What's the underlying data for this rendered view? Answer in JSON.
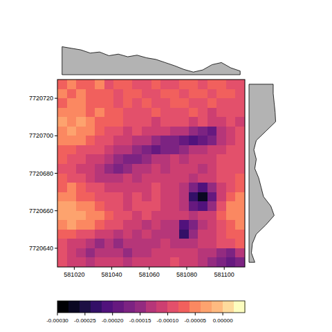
{
  "chart_data": {
    "type": "heatmap",
    "xlim": [
      581011,
      581111
    ],
    "ylim": [
      7720630,
      7720730
    ],
    "xticks": [
      581020,
      581040,
      581060,
      581080,
      581100
    ],
    "yticks": [
      7720640,
      7720660,
      7720680,
      7720700,
      7720720
    ],
    "x": [
      581013.5,
      581018.5,
      581023.5,
      581028.5,
      581033.5,
      581038.5,
      581043.5,
      581048.5,
      581053.5,
      581058.5,
      581063.5,
      581068.5,
      581073.5,
      581078.5,
      581083.5,
      581088.5,
      581093.5,
      581098.5,
      581103.5,
      581108.5
    ],
    "y": [
      7720727.5,
      7720722.5,
      7720717.5,
      7720712.5,
      7720707.5,
      7720702.5,
      7720697.5,
      7720692.5,
      7720687.5,
      7720682.5,
      7720677.5,
      7720672.5,
      7720667.5,
      7720662.5,
      7720657.5,
      7720652.5,
      7720647.5,
      7720642.5,
      7720637.5,
      7720632.5
    ],
    "cells": [
      [
        -7e-05,
        -6e-05,
        -8e-05,
        -7e-05,
        -6e-05,
        -9e-05,
        -8e-05,
        -7e-05,
        -0.0001,
        -9e-05,
        -8e-05,
        -0.0001,
        -9e-05,
        -8e-05,
        -7e-05,
        -9e-05,
        -8e-05,
        -7e-05,
        -9e-05,
        -0.0001
      ],
      [
        -6e-05,
        -7e-05,
        -6e-05,
        -8e-05,
        -7e-05,
        -8e-05,
        -9e-05,
        -7e-05,
        -8e-05,
        -0.0001,
        -9e-05,
        -8e-05,
        -7e-05,
        -9e-05,
        -8e-05,
        -7e-05,
        -9e-05,
        -8e-05,
        -8e-05,
        -9e-05
      ],
      [
        -7e-05,
        -5e-05,
        -6e-05,
        -7e-05,
        -8e-05,
        -7e-05,
        -9e-05,
        -8e-05,
        -9e-05,
        -8e-05,
        -0.0001,
        -9e-05,
        -8e-05,
        -7e-05,
        -9e-05,
        -0.0001,
        -8e-05,
        -9e-05,
        -0.0001,
        -9e-05
      ],
      [
        -5e-05,
        -6e-05,
        -5e-05,
        -7e-05,
        -6e-05,
        -8e-05,
        -7e-05,
        -9e-05,
        -0.0001,
        -9e-05,
        -8e-05,
        -9e-05,
        -0.0001,
        -9e-05,
        -8e-05,
        -9e-05,
        -0.00011,
        -0.0001,
        -9e-05,
        -0.0001
      ],
      [
        -4e-05,
        -5e-05,
        -4e-05,
        -6e-05,
        -7e-05,
        -8e-05,
        -8e-05,
        -0.0001,
        -9e-05,
        -0.0001,
        -0.00011,
        -0.0001,
        -9e-05,
        -0.0001,
        -0.00011,
        -0.0001,
        -0.00012,
        -0.00011,
        -0.0001,
        -0.00011
      ],
      [
        -5e-05,
        -4e-05,
        -5e-05,
        -6e-05,
        -8e-05,
        -9e-05,
        -0.0001,
        -0.00011,
        -0.0001,
        -0.00011,
        -0.00012,
        -0.00011,
        -0.00013,
        -0.00014,
        -0.00015,
        -0.00017,
        -0.00019,
        -0.00014,
        -0.00011,
        -0.0001
      ],
      [
        -6e-05,
        -5e-05,
        -6e-05,
        -8e-05,
        -9e-05,
        -0.0001,
        -0.00011,
        -0.00012,
        -0.00013,
        -0.00014,
        -0.00015,
        -0.00016,
        -0.00017,
        -0.00018,
        -0.0002,
        -0.00018,
        -0.00016,
        -0.00013,
        -0.00011,
        -0.0001
      ],
      [
        -7e-05,
        -8e-05,
        -9e-05,
        -0.0001,
        -0.0001,
        -0.00012,
        -0.00013,
        -0.00014,
        -0.00015,
        -0.00017,
        -0.00018,
        -0.00017,
        -0.00016,
        -0.00015,
        -0.00014,
        -0.00013,
        -0.00012,
        -0.00011,
        -0.0001,
        -9e-05
      ],
      [
        -8e-05,
        -9e-05,
        -0.0001,
        -0.00011,
        -0.00012,
        -0.00013,
        -0.00015,
        -0.00017,
        -0.00016,
        -0.00015,
        -0.00014,
        -0.00013,
        -0.00012,
        -0.00013,
        -0.00012,
        -0.00011,
        -0.00012,
        -0.0001,
        -9e-05,
        -9e-05
      ],
      [
        -9e-05,
        -0.0001,
        -0.00011,
        -0.00012,
        -0.00013,
        -0.00015,
        -0.00017,
        -0.00015,
        -0.00014,
        -0.00013,
        -0.00012,
        -0.00013,
        -0.00012,
        -0.00011,
        -0.00012,
        -0.00013,
        -0.00011,
        -0.0001,
        -0.0001,
        -9e-05
      ],
      [
        -8e-05,
        -9e-05,
        -0.0001,
        -0.00011,
        -0.00013,
        -0.00014,
        -0.00013,
        -0.00012,
        -0.00013,
        -0.00012,
        -0.00011,
        -0.00012,
        -0.00011,
        -0.00012,
        -0.00013,
        -0.00012,
        -0.00011,
        -0.0001,
        -9e-05,
        -8e-05
      ],
      [
        -7e-05,
        -6e-05,
        -8e-05,
        -9e-05,
        -0.0001,
        -0.00011,
        -0.00012,
        -0.00011,
        -0.00012,
        -0.00011,
        -0.0001,
        -0.00011,
        -0.00012,
        -0.00013,
        -0.00017,
        -0.0002,
        -0.00015,
        -0.00011,
        -9e-05,
        -8e-05
      ],
      [
        -5e-05,
        -6e-05,
        -7e-05,
        -8e-05,
        -9e-05,
        -0.0001,
        -0.0001,
        -0.00011,
        -0.0001,
        -0.00011,
        -0.0001,
        -0.00011,
        -0.00012,
        -0.00014,
        -0.00022,
        -0.00027,
        -0.00019,
        -0.00012,
        -8e-05,
        -6e-05
      ],
      [
        -4e-05,
        -4e-05,
        -5e-05,
        -6e-05,
        -7e-05,
        -9e-05,
        -0.0001,
        -0.00011,
        -0.0001,
        -9e-05,
        -0.0001,
        -0.00011,
        -0.00012,
        -0.00013,
        -0.00018,
        -0.00021,
        -0.00015,
        -0.0001,
        -6e-05,
        -5e-05
      ],
      [
        -4e-05,
        -3e-05,
        -4e-05,
        -5e-05,
        -6e-05,
        -8e-05,
        -9e-05,
        -0.0001,
        -0.00011,
        -0.0001,
        -0.00011,
        -0.00012,
        -0.00011,
        -0.00012,
        -0.00013,
        -0.00012,
        -0.00011,
        -8e-05,
        -5e-05,
        -5e-05
      ],
      [
        -5e-05,
        -4e-05,
        -5e-05,
        -6e-05,
        -7e-05,
        -9e-05,
        -0.0001,
        -0.00011,
        -0.00012,
        -0.00013,
        -0.00012,
        -0.00013,
        -0.00014,
        -0.0002,
        -0.00016,
        -0.00013,
        -0.00011,
        -9e-05,
        -7e-05,
        -6e-05
      ],
      [
        -7e-05,
        -8e-05,
        -9e-05,
        -0.0001,
        -0.00011,
        -0.00012,
        -0.00013,
        -0.00012,
        -0.00013,
        -0.00012,
        -0.00013,
        -0.00014,
        -0.00013,
        -0.00022,
        -0.00015,
        -0.00012,
        -0.00011,
        -0.0001,
        -8e-05,
        -7e-05
      ],
      [
        -9e-05,
        -0.00011,
        -0.00012,
        -0.00014,
        -0.00015,
        -0.00014,
        -0.00015,
        -0.00014,
        -0.00013,
        -0.00014,
        -0.00013,
        -0.00012,
        -0.00013,
        -0.00014,
        -0.00013,
        -0.00012,
        -0.00011,
        -0.0001,
        -9e-05,
        -8e-05
      ],
      [
        -0.0001,
        -0.00012,
        -0.00014,
        -0.00015,
        -0.00014,
        -0.00013,
        -0.00014,
        -0.00015,
        -0.00014,
        -0.00013,
        -0.00012,
        -0.00011,
        -0.00012,
        -0.00011,
        -0.00012,
        -0.00013,
        -0.00014,
        -0.00015,
        -0.00016,
        -0.00014
      ],
      [
        -9e-05,
        -0.00011,
        -0.00012,
        -0.00013,
        -0.00012,
        -0.00011,
        -0.00012,
        -0.00013,
        -0.00012,
        -0.00011,
        -0.00012,
        -0.00011,
        -0.0001,
        -0.00011,
        -0.00012,
        -0.00013,
        -0.00015,
        -0.00017,
        -0.00018,
        -0.00016
      ]
    ],
    "colorbar": {
      "range": [
        -0.0003,
        4e-05
      ],
      "ticks": [
        {
          "value": -0.0003,
          "label": "-0.00030"
        },
        {
          "value": -0.00025,
          "label": "-0.00025"
        },
        {
          "value": -0.0002,
          "label": "-0.00020"
        },
        {
          "value": -0.00015,
          "label": "-0.00015"
        },
        {
          "value": -0.0001,
          "label": "-0.00010"
        },
        {
          "value": -5e-05,
          "label": "-0.00005"
        },
        {
          "value": 0,
          "label": "0.00000"
        }
      ],
      "colors": [
        "#000004",
        "#0a0822",
        "#1c1044",
        "#331067",
        "#51127c",
        "#66197f",
        "#7c2382",
        "#932b80",
        "#b63679",
        "#cd3f71",
        "#e3506b",
        "#f1605d",
        "#fb8861",
        "#fda36e",
        "#feba80",
        "#fdda9c",
        "#fcfdbf"
      ]
    },
    "top_profile": {
      "lim": [
        -0.000125,
        -7e-05
      ],
      "values": [
        -7.2e-05,
        -7.5e-05,
        -7.8e-05,
        -8.4e-05,
        -8.2e-05,
        -8.9e-05,
        -8.6e-05,
        -9.1e-05,
        -8.8e-05,
        -9.3e-05,
        -9.6e-05,
        -0.000102,
        -0.000108,
        -0.000115,
        -0.00012,
        -0.000116,
        -0.000106,
        -0.000102,
        -0.000112,
        -0.000118
      ]
    },
    "right_profile": {
      "lim": [
        -0.00013,
        -7e-05
      ],
      "values": [
        -8e-05,
        -8e-05,
        -7.8e-05,
        -7.6e-05,
        -7.5e-05,
        -9.5e-05,
        -0.000115,
        -0.00012,
        -0.000115,
        -0.000118,
        -0.00011,
        -0.000105,
        -0.0001,
        -8.5e-05,
        -7.8e-05,
        -9.5e-05,
        -0.000115,
        -0.000123,
        -0.000125,
        -0.000118
      ]
    }
  }
}
